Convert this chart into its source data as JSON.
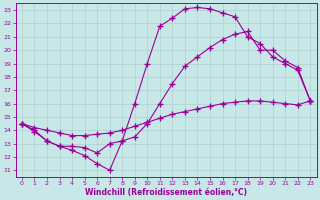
{
  "xlabel": "Windchill (Refroidissement éolien,°C)",
  "ylabel": "",
  "xlim": [
    -0.5,
    23.5
  ],
  "ylim": [
    10.5,
    23.5
  ],
  "xticks": [
    0,
    1,
    2,
    3,
    4,
    5,
    6,
    7,
    8,
    9,
    10,
    11,
    12,
    13,
    14,
    15,
    16,
    17,
    18,
    19,
    20,
    21,
    22,
    23
  ],
  "yticks": [
    11,
    12,
    13,
    14,
    15,
    16,
    17,
    18,
    19,
    20,
    21,
    22,
    23
  ],
  "background_color": "#c8e8e8",
  "grid_color": "#b0d0d0",
  "line_color": "#990099",
  "line1_x": [
    0,
    1,
    2,
    3,
    4,
    5,
    6,
    7,
    8,
    9,
    10,
    11,
    12,
    13,
    14,
    15,
    16,
    17,
    18,
    19,
    20,
    21,
    22,
    23
  ],
  "line1_y": [
    14.5,
    14.0,
    13.2,
    12.8,
    12.5,
    12.1,
    11.5,
    11.0,
    13.2,
    16.0,
    19.0,
    21.8,
    22.4,
    23.1,
    23.2,
    23.1,
    22.8,
    22.5,
    21.0,
    20.5,
    19.5,
    19.0,
    18.5,
    16.2
  ],
  "line2_x": [
    0,
    1,
    2,
    3,
    4,
    5,
    6,
    7,
    8,
    9,
    10,
    11,
    12,
    13,
    14,
    15,
    16,
    17,
    18,
    19,
    20,
    21,
    22,
    23
  ],
  "line2_y": [
    14.5,
    14.2,
    14.0,
    13.8,
    13.6,
    13.6,
    13.7,
    13.8,
    14.0,
    14.3,
    14.6,
    14.9,
    15.2,
    15.4,
    15.6,
    15.8,
    16.0,
    16.1,
    16.2,
    16.2,
    16.1,
    16.0,
    15.9,
    16.2
  ],
  "line3_x": [
    0,
    1,
    2,
    3,
    4,
    5,
    6,
    7,
    8,
    9,
    10,
    11,
    12,
    13,
    14,
    15,
    16,
    17,
    18,
    19,
    20,
    21,
    22,
    23
  ],
  "line3_y": [
    14.5,
    13.9,
    13.2,
    12.8,
    12.8,
    12.7,
    12.3,
    13.0,
    13.2,
    13.5,
    14.5,
    16.0,
    17.5,
    18.8,
    19.5,
    20.2,
    20.8,
    21.2,
    21.4,
    20.0,
    20.0,
    19.2,
    18.7,
    16.2
  ]
}
